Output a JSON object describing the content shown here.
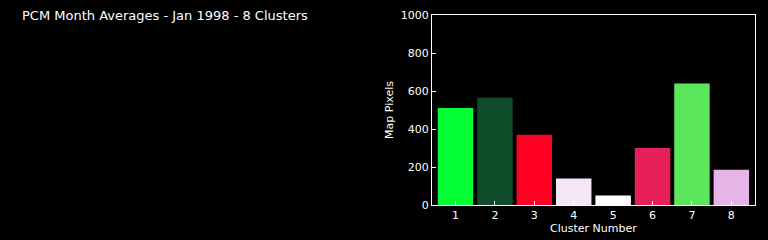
{
  "chart_data": {
    "type": "bar",
    "title": "PCM Month Averages - Jan 1998 - 8 Clusters",
    "categories": [
      "1",
      "2",
      "3",
      "4",
      "5",
      "6",
      "7",
      "8"
    ],
    "values": [
      510,
      565,
      370,
      140,
      50,
      300,
      640,
      185
    ],
    "colors": [
      "#00ff33",
      "#0f4d2a",
      "#ff0022",
      "#f5e6f5",
      "#ffffff",
      "#e8205a",
      "#5ce65c",
      "#e6b4e6"
    ],
    "x_label": "Cluster Number",
    "y_label": "Map Pixels",
    "ylim": [
      0,
      1000
    ],
    "yticks": [
      0,
      200,
      400,
      600,
      800,
      1000
    ],
    "grid": false
  }
}
